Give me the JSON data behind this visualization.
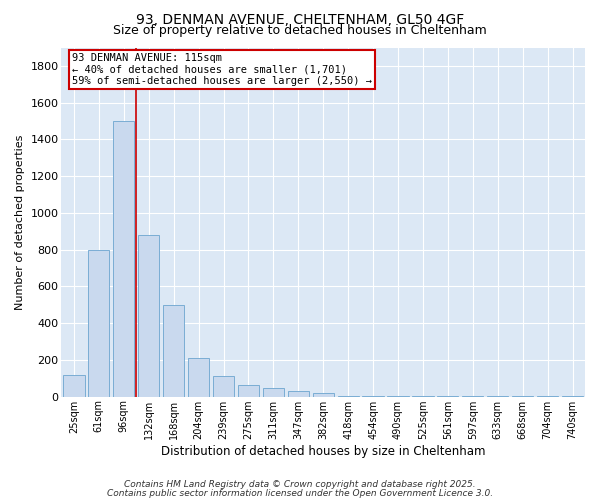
{
  "title1": "93, DENMAN AVENUE, CHELTENHAM, GL50 4GF",
  "title2": "Size of property relative to detached houses in Cheltenham",
  "xlabel": "Distribution of detached houses by size in Cheltenham",
  "ylabel": "Number of detached properties",
  "categories": [
    "25sqm",
    "61sqm",
    "96sqm",
    "132sqm",
    "168sqm",
    "204sqm",
    "239sqm",
    "275sqm",
    "311sqm",
    "347sqm",
    "382sqm",
    "418sqm",
    "454sqm",
    "490sqm",
    "525sqm",
    "561sqm",
    "597sqm",
    "633sqm",
    "668sqm",
    "704sqm",
    "740sqm"
  ],
  "values": [
    120,
    800,
    1500,
    880,
    500,
    210,
    110,
    65,
    45,
    30,
    20,
    5,
    2,
    2,
    2,
    2,
    2,
    2,
    2,
    2,
    2
  ],
  "bar_color": "#c9d9ee",
  "bar_edge_color": "#7aadd4",
  "ylim": [
    0,
    1900
  ],
  "yticks": [
    0,
    200,
    400,
    600,
    800,
    1000,
    1200,
    1400,
    1600,
    1800
  ],
  "red_line_x": 2.5,
  "red_line_color": "#cc0000",
  "annotation_text": "93 DENMAN AVENUE: 115sqm\n← 40% of detached houses are smaller (1,701)\n59% of semi-detached houses are larger (2,550) →",
  "annotation_box_color": "#ffffff",
  "annotation_box_edge": "#cc0000",
  "fig_bg_color": "#ffffff",
  "plot_bg_color": "#dce8f5",
  "grid_color": "#ffffff",
  "footer1": "Contains HM Land Registry data © Crown copyright and database right 2025.",
  "footer2": "Contains public sector information licensed under the Open Government Licence 3.0."
}
